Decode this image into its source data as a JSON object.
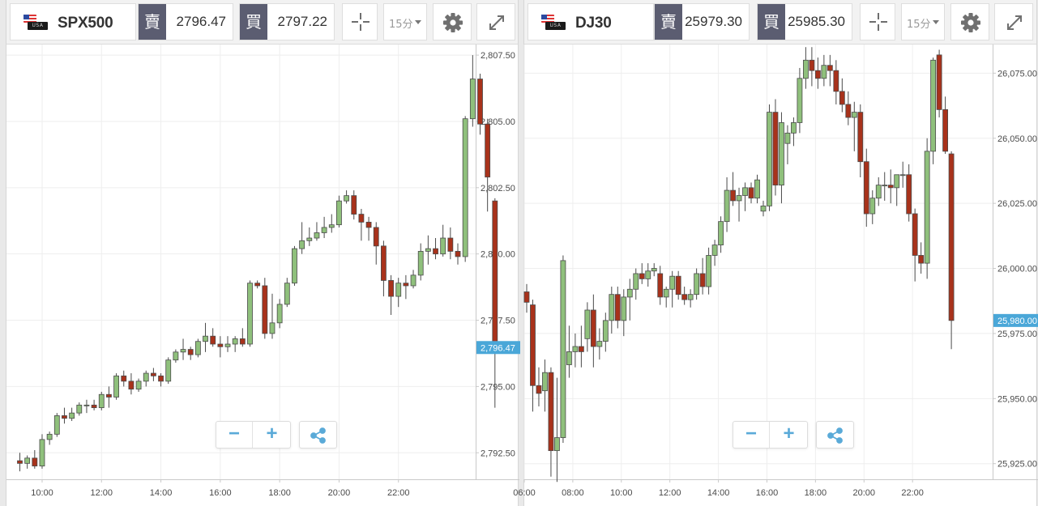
{
  "colors": {
    "up": "#8fc07c",
    "down": "#a8321b",
    "candle_border": "#4a4a4a",
    "grid": "#eeeeee",
    "axis": "#c9c9c9",
    "axis_text": "#4a4a4a",
    "price_tag": "#4aa7d8",
    "icon_blue": "#5aaad8"
  },
  "zoom": {
    "minus": "−",
    "plus": "+"
  },
  "panels": [
    {
      "symbol": "SPX500",
      "flag_text": "USA",
      "sell_label": "賣",
      "sell_price": "2796.47",
      "buy_label": "買",
      "buy_price": "2797.22",
      "interval": "15分",
      "icons": {
        "crosshair": "crosshair-icon",
        "settings": "gear-icon",
        "fullscreen": "expand-icon",
        "share": "share-icon"
      },
      "chart_data": {
        "type": "candlestick",
        "x_ticks": [
          "10:00",
          "12:00",
          "14:00",
          "16:00",
          "18:00",
          "20:00",
          "22:00"
        ],
        "x_tick_hours": [
          10,
          12,
          14,
          16,
          18,
          20,
          22
        ],
        "x_range_hours": [
          8.8,
          24.6
        ],
        "y_ticks": [
          "2,807.50",
          "2,805.00",
          "2,802.50",
          "2,800.00",
          "2,797.50",
          "2,795.00",
          "2,792.50"
        ],
        "y_tick_values": [
          2807.5,
          2805,
          2802.5,
          2800,
          2797.5,
          2795,
          2792.5
        ],
        "ylim": [
          2791.5,
          2807.9
        ],
        "last_price": "2,796.47",
        "last_value": 2796.47,
        "start_hour": 9.25,
        "step_hours": 0.25,
        "candles": [
          [
            2792.2,
            2792.5,
            2791.8,
            2792.1
          ],
          [
            2792.1,
            2792.4,
            2791.9,
            2792.3
          ],
          [
            2792.3,
            2792.6,
            2791.9,
            2792.0
          ],
          [
            2792.0,
            2793.2,
            2791.9,
            2793.0
          ],
          [
            2793.0,
            2793.3,
            2792.8,
            2793.2
          ],
          [
            2793.2,
            2794.0,
            2793.1,
            2793.9
          ],
          [
            2793.9,
            2794.2,
            2793.6,
            2793.8
          ],
          [
            2793.8,
            2794.2,
            2793.7,
            2794.0
          ],
          [
            2794.0,
            2794.4,
            2793.9,
            2794.3
          ],
          [
            2794.3,
            2794.5,
            2794.0,
            2794.3
          ],
          [
            2794.3,
            2794.5,
            2794.1,
            2794.2
          ],
          [
            2794.2,
            2794.8,
            2794.1,
            2794.7
          ],
          [
            2794.7,
            2795.0,
            2794.2,
            2794.6
          ],
          [
            2794.6,
            2795.5,
            2794.5,
            2795.4
          ],
          [
            2795.4,
            2795.6,
            2795.0,
            2795.2
          ],
          [
            2795.2,
            2795.5,
            2794.7,
            2794.9
          ],
          [
            2794.9,
            2795.3,
            2794.8,
            2795.2
          ],
          [
            2795.2,
            2795.6,
            2795.0,
            2795.5
          ],
          [
            2795.5,
            2795.7,
            2795.2,
            2795.4
          ],
          [
            2795.4,
            2795.5,
            2795.0,
            2795.2
          ],
          [
            2795.2,
            2796.1,
            2795.1,
            2796.0
          ],
          [
            2796.0,
            2796.4,
            2795.9,
            2796.3
          ],
          [
            2796.3,
            2796.8,
            2796.0,
            2796.4
          ],
          [
            2796.4,
            2796.5,
            2796.0,
            2796.2
          ],
          [
            2796.2,
            2796.8,
            2796.1,
            2796.7
          ],
          [
            2796.7,
            2797.4,
            2796.3,
            2796.9
          ],
          [
            2796.9,
            2797.2,
            2796.5,
            2796.6
          ],
          [
            2796.6,
            2796.9,
            2796.1,
            2796.5
          ],
          [
            2796.5,
            2796.9,
            2796.3,
            2796.6
          ],
          [
            2796.6,
            2796.9,
            2796.3,
            2796.8
          ],
          [
            2796.8,
            2797.2,
            2796.5,
            2796.6
          ],
          [
            2796.6,
            2799.0,
            2796.5,
            2798.9
          ],
          [
            2798.9,
            2799.0,
            2798.7,
            2798.8
          ],
          [
            2798.8,
            2799.1,
            2796.8,
            2797.0
          ],
          [
            2797.0,
            2798.5,
            2796.8,
            2797.4
          ],
          [
            2797.4,
            2798.3,
            2797.2,
            2798.1
          ],
          [
            2798.1,
            2799.1,
            2798.0,
            2798.9
          ],
          [
            2798.9,
            2800.3,
            2798.8,
            2800.2
          ],
          [
            2800.2,
            2801.2,
            2800.0,
            2800.5
          ],
          [
            2800.5,
            2801.0,
            2800.3,
            2800.6
          ],
          [
            2800.6,
            2801.2,
            2800.5,
            2800.8
          ],
          [
            2800.8,
            2801.4,
            2800.6,
            2801.0
          ],
          [
            2801.0,
            2801.5,
            2800.8,
            2801.1
          ],
          [
            2801.1,
            2802.2,
            2801.0,
            2802.0
          ],
          [
            2802.0,
            2802.4,
            2801.9,
            2802.2
          ],
          [
            2802.2,
            2802.4,
            2801.3,
            2801.5
          ],
          [
            2801.5,
            2801.7,
            2800.5,
            2801.2
          ],
          [
            2801.2,
            2801.4,
            2800.5,
            2801.0
          ],
          [
            2801.0,
            2801.2,
            2799.6,
            2800.3
          ],
          [
            2800.3,
            2800.5,
            2798.4,
            2799.0
          ],
          [
            2799.0,
            2799.2,
            2797.7,
            2798.4
          ],
          [
            2798.4,
            2799.1,
            2798.0,
            2798.9
          ],
          [
            2798.9,
            2799.2,
            2798.3,
            2798.8
          ],
          [
            2798.8,
            2799.4,
            2798.7,
            2799.2
          ],
          [
            2799.2,
            2800.4,
            2799.0,
            2800.1
          ],
          [
            2800.1,
            2800.7,
            2799.6,
            2800.2
          ],
          [
            2800.2,
            2800.6,
            2799.8,
            2800.0
          ],
          [
            2800.0,
            2801.1,
            2799.9,
            2800.6
          ],
          [
            2800.6,
            2801.0,
            2799.8,
            2800.1
          ],
          [
            2800.1,
            2800.4,
            2799.6,
            2799.9
          ],
          [
            2799.9,
            2805.2,
            2799.7,
            2805.1
          ],
          [
            2805.1,
            2807.5,
            2804.8,
            2806.6
          ],
          [
            2806.6,
            2806.8,
            2804.5,
            2804.9
          ],
          [
            2804.9,
            2805.1,
            2801.6,
            2802.9
          ],
          [
            2802.0,
            2802.1,
            2794.2,
            2796.5
          ]
        ]
      }
    },
    {
      "symbol": "DJ30",
      "flag_text": "USA",
      "sell_label": "賣",
      "sell_price": "25979.30",
      "buy_label": "買",
      "buy_price": "25985.30",
      "interval": "15分",
      "icons": {
        "crosshair": "crosshair-icon",
        "settings": "gear-icon",
        "fullscreen": "expand-icon",
        "share": "share-icon"
      },
      "chart_data": {
        "type": "candlestick",
        "x_ticks": [
          "06:00",
          "08:00",
          "10:00",
          "12:00",
          "14:00",
          "16:00",
          "18:00",
          "20:00",
          "22:00"
        ],
        "x_tick_hours": [
          6,
          8,
          10,
          12,
          14,
          16,
          18,
          20,
          22
        ],
        "x_range_hours": [
          6.0,
          25.3
        ],
        "y_ticks": [
          "26,075.00",
          "26,050.00",
          "26,025.00",
          "26,000.00",
          "25,975.00",
          "25,950.00",
          "25,925.00"
        ],
        "y_tick_values": [
          26075,
          26050,
          26025,
          26000,
          25975,
          25950,
          25925
        ],
        "ylim": [
          25919,
          26086
        ],
        "last_price": "25,980.00",
        "last_value": 25980,
        "start_hour": 6.1,
        "step_hours": 0.25,
        "candles": [
          [
            25991,
            25994,
            25983,
            25987
          ],
          [
            25986,
            25988,
            25945,
            25955
          ],
          [
            25955,
            25962,
            25947,
            25952
          ],
          [
            25953,
            25965,
            25945,
            25960
          ],
          [
            25960,
            25962,
            25920,
            25930
          ],
          [
            25930,
            25958,
            25918,
            25935
          ],
          [
            25935,
            26005,
            25933,
            26003
          ],
          [
            25963,
            25978,
            25958,
            25968
          ],
          [
            25968,
            25975,
            25962,
            25970
          ],
          [
            25970,
            25978,
            25962,
            25968
          ],
          [
            25973,
            25987,
            25968,
            25984
          ],
          [
            25984,
            25990,
            25962,
            25970
          ],
          [
            25970,
            25977,
            25965,
            25972
          ],
          [
            25972,
            25983,
            25968,
            25980
          ],
          [
            25980,
            25993,
            25975,
            25990
          ],
          [
            25990,
            25993,
            25977,
            25980
          ],
          [
            25980,
            25992,
            25974,
            25989
          ],
          [
            25989,
            25996,
            25980,
            25992
          ],
          [
            25992,
            26000,
            25988,
            25998
          ],
          [
            25998,
            26002,
            25994,
            25996
          ],
          [
            25996,
            26002,
            25993,
            25999
          ],
          [
            25999,
            26002,
            25997,
            26000
          ],
          [
            25998,
            26001,
            25986,
            25989
          ],
          [
            25989,
            25993,
            25985,
            25992
          ],
          [
            25992,
            25999,
            25985,
            25997
          ],
          [
            25997,
            25999,
            25988,
            25990
          ],
          [
            25990,
            25993,
            25986,
            25988
          ],
          [
            25988,
            25992,
            25985,
            25990
          ],
          [
            25990,
            26000,
            25988,
            25998
          ],
          [
            25998,
            26004,
            25990,
            25993
          ],
          [
            25993,
            26008,
            25990,
            26005
          ],
          [
            26005,
            26011,
            26001,
            26009
          ],
          [
            26009,
            26020,
            26006,
            26018
          ],
          [
            26018,
            26035,
            26014,
            26030
          ],
          [
            26030,
            26037,
            26024,
            26026
          ],
          [
            26026,
            26031,
            26018,
            26028
          ],
          [
            26028,
            26033,
            26022,
            26031
          ],
          [
            26031,
            26033,
            26025,
            26027
          ],
          [
            26027,
            26036,
            26025,
            26034
          ],
          [
            26022,
            26026,
            26020,
            26024
          ],
          [
            26024,
            26063,
            26022,
            26060
          ],
          [
            26060,
            26065,
            26028,
            26032
          ],
          [
            26032,
            26060,
            26025,
            26056
          ],
          [
            26048,
            26055,
            26040,
            26052
          ],
          [
            26052,
            26058,
            26047,
            26056
          ],
          [
            26056,
            26077,
            26052,
            26073
          ],
          [
            26073,
            26085,
            26069,
            26080
          ],
          [
            26080,
            26085,
            26070,
            26076
          ],
          [
            26076,
            26081,
            26069,
            26073
          ],
          [
            26073,
            26082,
            26070,
            26078
          ],
          [
            26078,
            26082,
            26070,
            26076
          ],
          [
            26076,
            26080,
            26063,
            26068
          ],
          [
            26068,
            26073,
            26060,
            26063
          ],
          [
            26063,
            26068,
            26055,
            26058
          ],
          [
            26058,
            26064,
            26045,
            26060
          ],
          [
            26060,
            26063,
            26035,
            26041
          ],
          [
            26041,
            26046,
            26016,
            26021
          ],
          [
            26021,
            26030,
            26017,
            26027
          ],
          [
            26027,
            26035,
            26024,
            26032
          ],
          [
            26032,
            26037,
            26026,
            26032
          ],
          [
            26032,
            26038,
            26025,
            26031
          ],
          [
            26031,
            26035,
            26024,
            26036
          ],
          [
            26036,
            26041,
            26031,
            26036
          ],
          [
            26036,
            26040,
            26018,
            26021
          ],
          [
            26021,
            26023,
            25995,
            26005
          ],
          [
            26005,
            26010,
            25998,
            26002
          ],
          [
            26002,
            26050,
            25996,
            26045
          ],
          [
            26045,
            26081,
            26040,
            26080
          ],
          [
            26082,
            26084,
            26058,
            26061
          ],
          [
            26061,
            26066,
            26044,
            26045
          ],
          [
            26044,
            26045,
            25969,
            25980
          ]
        ]
      }
    }
  ]
}
